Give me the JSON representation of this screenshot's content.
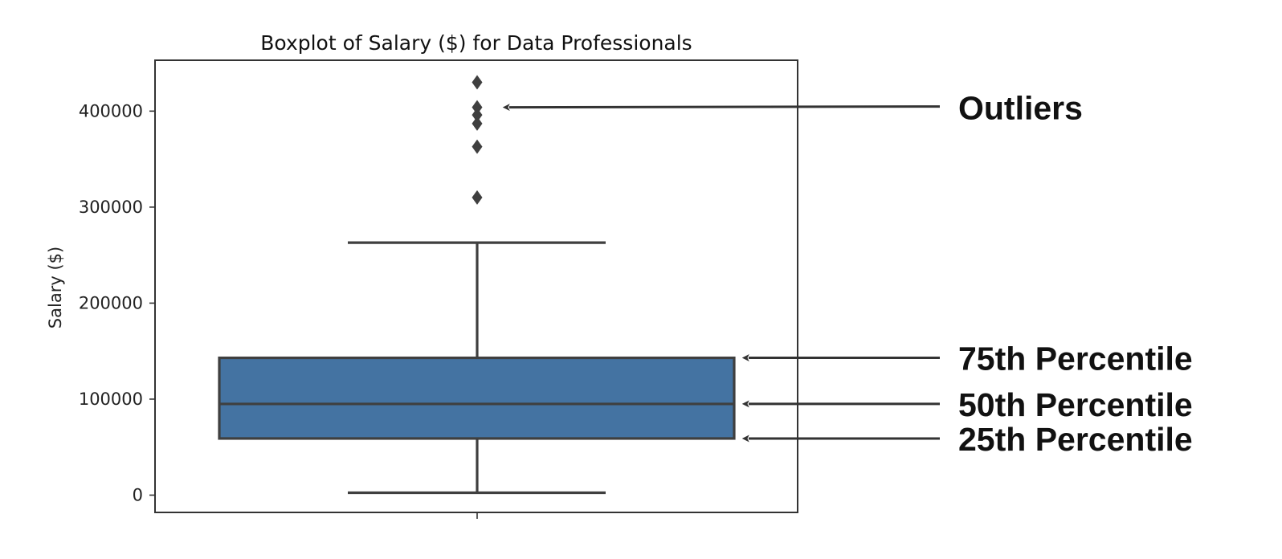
{
  "chart_data": {
    "type": "boxplot",
    "title": "Boxplot of Salary ($) for Data Professionals",
    "xlabel": "",
    "ylabel": "Salary ($)",
    "ylim": [
      -18000,
      453000
    ],
    "yticks": [
      0,
      100000,
      200000,
      300000,
      400000
    ],
    "ytick_labels": [
      "0",
      "100000",
      "200000",
      "300000",
      "400000"
    ],
    "grid": false,
    "box": {
      "whisker_low": 2500,
      "q1": 59000,
      "median": 95000,
      "q3": 143000,
      "whisker_high": 263000,
      "outliers": [
        310000,
        363000,
        387000,
        396000,
        404000,
        430000
      ]
    },
    "colors": {
      "box_fill": "#4473A2",
      "line": "#3f3f3f",
      "frame": "#333333",
      "text": "#111111",
      "arrow": "#333333"
    },
    "annotations": [
      {
        "name": "annotation-outliers",
        "text": "Outliers",
        "target": 404000,
        "pointer": "outliers"
      },
      {
        "name": "annotation-75th",
        "text": "75th Percentile",
        "target": 143000,
        "pointer": "box"
      },
      {
        "name": "annotation-50th",
        "text": "50th Percentile",
        "target": 95000,
        "pointer": "box"
      },
      {
        "name": "annotation-25th",
        "text": "25th Percentile",
        "target": 59000,
        "pointer": "box"
      }
    ]
  }
}
